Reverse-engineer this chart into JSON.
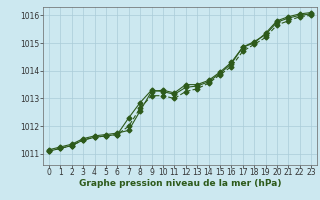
{
  "xlabel": "Graphe pression niveau de la mer (hPa)",
  "ylabel": "",
  "background_color": "#cce8f0",
  "grid_color": "#aaccd8",
  "line_color": "#2d5a1b",
  "xlim": [
    -0.5,
    23.5
  ],
  "ylim": [
    1010.6,
    1016.3
  ],
  "xticks": [
    0,
    1,
    2,
    3,
    4,
    5,
    6,
    7,
    8,
    9,
    10,
    11,
    12,
    13,
    14,
    15,
    16,
    17,
    18,
    19,
    20,
    21,
    22,
    23
  ],
  "yticks": [
    1011,
    1012,
    1013,
    1014,
    1015,
    1016
  ],
  "series1_x": [
    0,
    1,
    2,
    3,
    4,
    5,
    6,
    7,
    8,
    9,
    10,
    11,
    12,
    13,
    14,
    15,
    16,
    17,
    18,
    19,
    20,
    21,
    22,
    23
  ],
  "series1_y": [
    1011.15,
    1011.25,
    1011.35,
    1011.55,
    1011.65,
    1011.7,
    1011.75,
    1011.85,
    1012.55,
    1013.25,
    1013.3,
    1013.2,
    1013.5,
    1013.5,
    1013.65,
    1013.95,
    1014.3,
    1014.85,
    1015.05,
    1015.3,
    1015.75,
    1015.9,
    1016.0,
    1016.05
  ],
  "series2_x": [
    0,
    1,
    2,
    3,
    4,
    5,
    6,
    7,
    8,
    9,
    10,
    11,
    12,
    13,
    14,
    15,
    16,
    17,
    18,
    19,
    20,
    21,
    22,
    23
  ],
  "series2_y": [
    1011.1,
    1011.2,
    1011.3,
    1011.5,
    1011.6,
    1011.65,
    1011.7,
    1012.0,
    1012.65,
    1013.1,
    1013.1,
    1013.0,
    1013.25,
    1013.35,
    1013.55,
    1013.85,
    1014.15,
    1014.7,
    1014.95,
    1015.2,
    1015.65,
    1015.8,
    1015.95,
    1016.0
  ],
  "series3_x": [
    0,
    1,
    2,
    3,
    4,
    5,
    6,
    7,
    8,
    9,
    10,
    11,
    12,
    13,
    14,
    15,
    16,
    17,
    18,
    19,
    20,
    21,
    22,
    23
  ],
  "series3_y": [
    1011.1,
    1011.2,
    1011.3,
    1011.5,
    1011.6,
    1011.65,
    1011.7,
    1012.3,
    1012.85,
    1013.3,
    1013.25,
    1013.15,
    1013.4,
    1013.45,
    1013.6,
    1013.9,
    1014.25,
    1014.85,
    1015.0,
    1015.35,
    1015.8,
    1015.95,
    1016.05,
    1016.1
  ],
  "marker": "D",
  "markersize": 2.5,
  "linewidth": 0.8,
  "xlabel_fontsize": 6.5,
  "tick_fontsize": 5.5,
  "xlabel_bold": true
}
